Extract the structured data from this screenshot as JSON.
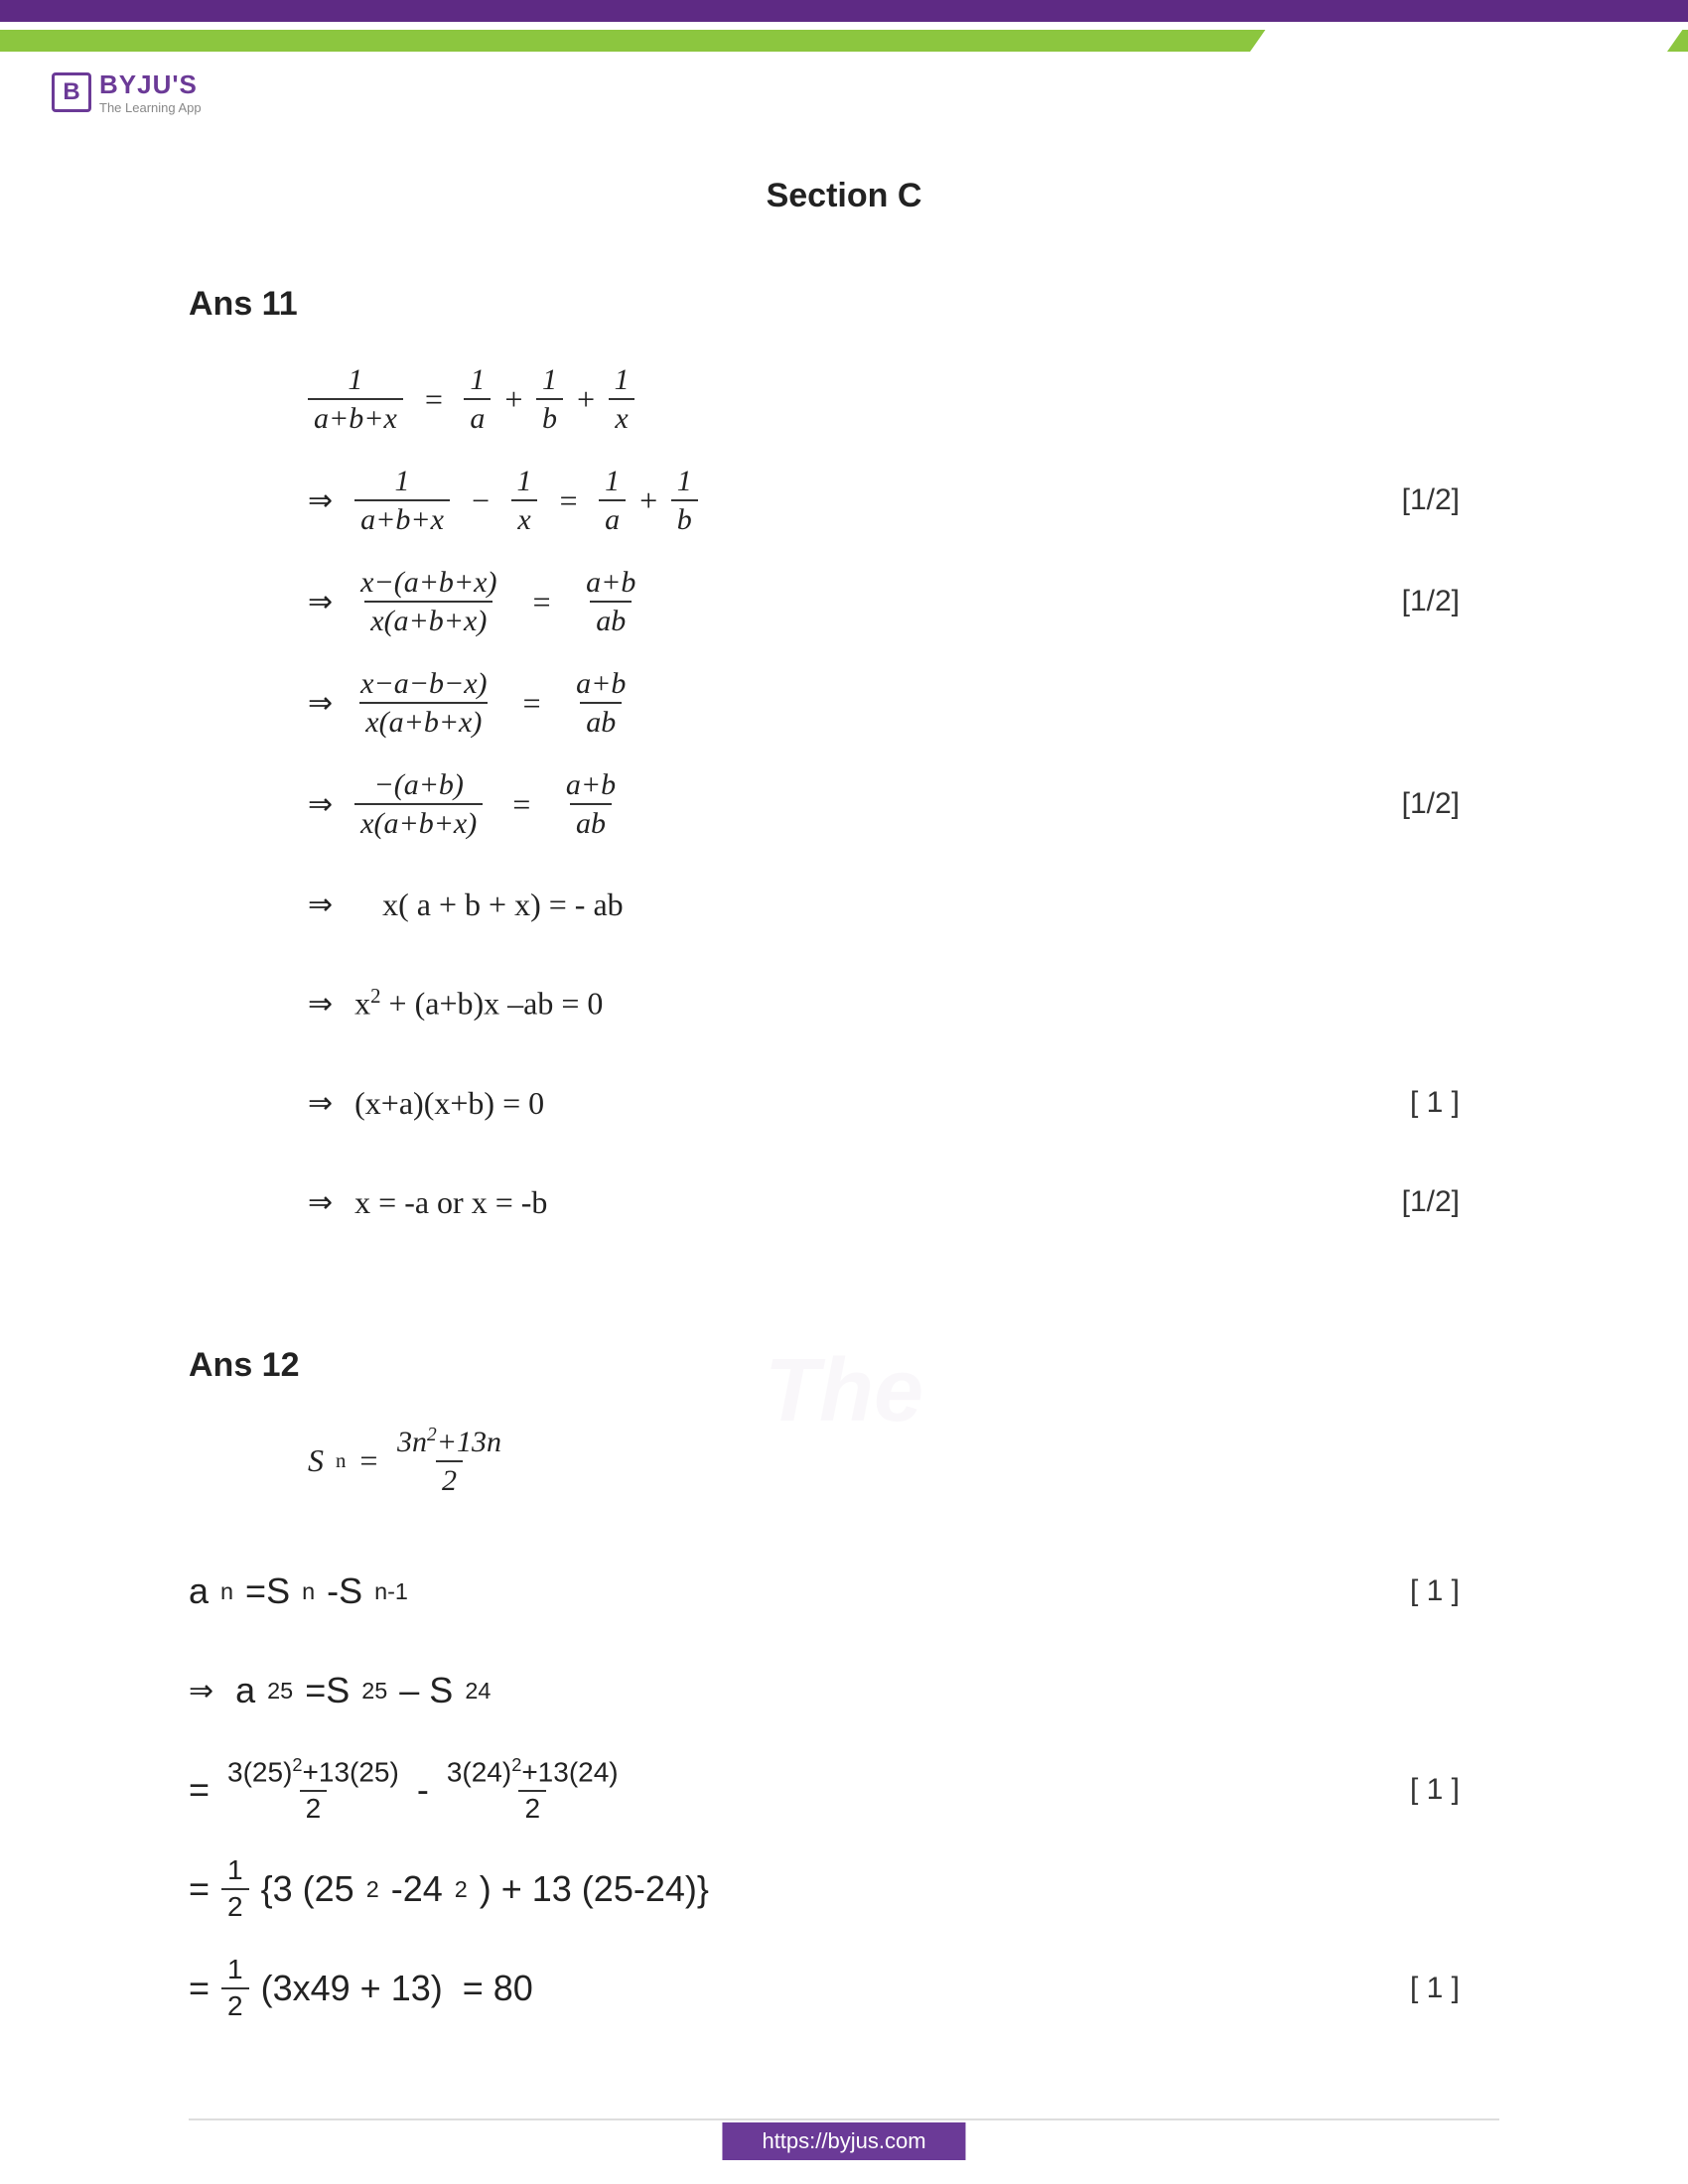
{
  "brand": {
    "name": "BYJU'S",
    "tagline": "The Learning App",
    "logo_letter": "B"
  },
  "colors": {
    "purple": "#5e2a84",
    "green": "#8cc63f",
    "logo_purple": "#6b3a97"
  },
  "section_title": "Section C",
  "answers": [
    {
      "label": "Ans 11",
      "steps": [
        {
          "html": "<span class='frac'><span class='num'>1</span><span class='den'>a+b+x</span></span> &nbsp;=&nbsp; <span class='frac'><span class='num'>1</span><span class='den'>a</span></span> + <span class='frac'><span class='num'>1</span><span class='den'>b</span></span> + <span class='frac'><span class='num'>1</span><span class='den'>x</span></span>",
          "marks": ""
        },
        {
          "html": "<span class='arr'>⇒</span><span class='frac'><span class='num'>1</span><span class='den'>a+b+x</span></span> &nbsp;−&nbsp; <span class='frac'><span class='num'>1</span><span class='den'>x</span></span> &nbsp;=&nbsp; <span class='frac'><span class='num'>1</span><span class='den'>a</span></span> + <span class='frac'><span class='num'>1</span><span class='den'>b</span></span>",
          "marks": "[1/2]"
        },
        {
          "html": "<span class='arr'>⇒</span><span class='frac'><span class='num'>x−(a+b+x)</span><span class='den'>x(a+b+x)</span></span> &nbsp;&nbsp;=&nbsp;&nbsp; <span class='frac'><span class='num'>a+b</span><span class='den'>ab</span></span>",
          "marks": "[1/2]"
        },
        {
          "html": "<span class='arr'>⇒</span><span class='frac'><span class='num'>x−a−b−x)</span><span class='den'>x(a+b+x)</span></span> &nbsp;&nbsp;=&nbsp;&nbsp; <span class='frac'><span class='num'>a+b</span><span class='den'>ab</span></span>",
          "marks": ""
        },
        {
          "html": "<span class='arr'>⇒</span><span class='frac'><span class='num'>−(a+b)</span><span class='den'>x(a+b+x)</span></span> &nbsp;&nbsp;=&nbsp;&nbsp; <span class='frac'><span class='num'>a+b</span><span class='den'>ab</span></span>",
          "marks": "[1/2]"
        },
        {
          "html": "<span class='arr'>⇒</span>&nbsp;&nbsp; <span class='upright'>x( a + b + x) = - ab</span>",
          "marks": ""
        },
        {
          "html": "<span class='arr'>⇒</span> <span class='upright'>x<sup>2</sup> + (a+b)x –ab = 0</span>",
          "marks": ""
        },
        {
          "html": "<span class='arr'>⇒</span> <span class='upright'>(x+a)(x+b) = 0</span>",
          "marks": "[ 1 ]"
        },
        {
          "html": "<span class='arr'>⇒</span> <span class='upright'>x = -a or x = -b</span>",
          "marks": "[1/2]"
        }
      ]
    },
    {
      "label": "Ans 12",
      "formula": {
        "html": "S<sub>n</sub> = <span class='frac'><span class='num'>3n<sup>2</sup>+13n</span><span class='den'>2</span></span>"
      },
      "steps": [
        {
          "html": "a<sub>n</sub>=S<sub>n</sub>-S<sub>n-1</sub>",
          "marks": "[ 1 ]"
        },
        {
          "html": "<span class='arr'>⇒</span>a<sub>25</sub>=S<sub>25</sub> – S<sub>24</sub>",
          "marks": ""
        },
        {
          "html": "=<span class='frac'><span class='num'>3(25)<sup>2</sup>+13(25)</span><span class='den'>2</span></span> - <span class='frac'><span class='num'>3(24)<sup>2</sup>+13(24)</span><span class='den'>2</span></span>",
          "marks": "[ 1 ]"
        },
        {
          "html": "=<span class='frac'><span class='num'>1</span><span class='den'>2</span></span>{3 (25<sup>2</sup>-24<sup>2</sup>) + 13 (25-24)}",
          "marks": ""
        },
        {
          "html": "=<span class='frac'><span class='num'>1</span><span class='den'>2</span></span> (3x49 + 13) &nbsp;= 80",
          "marks": "[ 1 ]"
        }
      ]
    }
  ],
  "footer_url": "https://byjus.com"
}
